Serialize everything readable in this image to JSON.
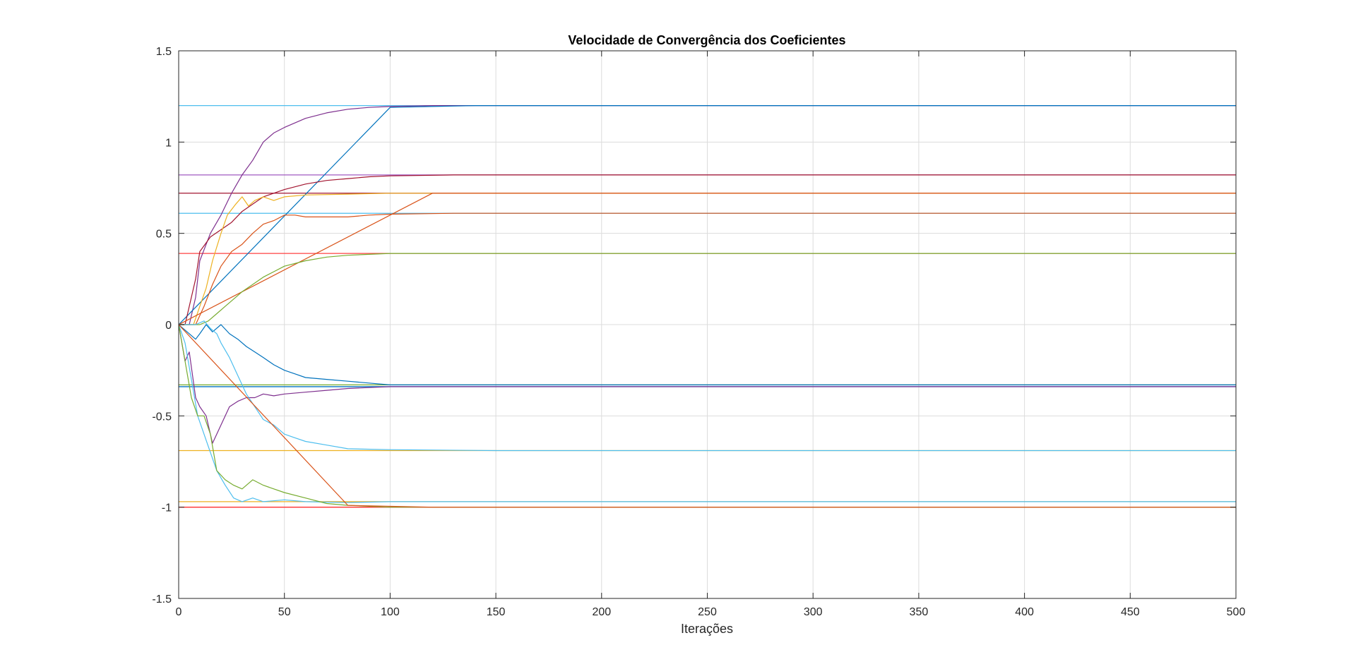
{
  "chart_data": {
    "type": "line",
    "title": "Velocidade de Convergência dos Coeficientes",
    "xlabel": "Iterações",
    "ylabel": "",
    "xlim": [
      0,
      500
    ],
    "ylim": [
      -1.5,
      1.5
    ],
    "xticks": [
      0,
      50,
      100,
      150,
      200,
      250,
      300,
      350,
      400,
      450,
      500
    ],
    "yticks": [
      -1.5,
      -1,
      -0.5,
      0,
      0.5,
      1,
      1.5
    ],
    "xtick_labels": [
      "0",
      "50",
      "100",
      "150",
      "200",
      "250",
      "300",
      "350",
      "400",
      "450",
      "500"
    ],
    "ytick_labels": [
      "-1.5",
      "-1",
      "-0.5",
      "0",
      "0.5",
      "1",
      "1.5"
    ],
    "grid": true,
    "legend": "none",
    "reference_lines": [
      {
        "y": 1.2,
        "color": "#4DBEEE"
      },
      {
        "y": 0.82,
        "color": "#A05AC0"
      },
      {
        "y": 0.72,
        "color": "#A2142F"
      },
      {
        "y": 0.61,
        "color": "#4DBEEE"
      },
      {
        "y": 0.39,
        "color": "#FF4040"
      },
      {
        "y": -0.33,
        "color": "#77AC30"
      },
      {
        "y": -0.34,
        "color": "#0072BD"
      },
      {
        "y": -0.69,
        "color": "#EDB120"
      },
      {
        "y": -0.97,
        "color": "#EDB120"
      },
      {
        "y": -1.0,
        "color": "#FF3030"
      }
    ],
    "series": [
      {
        "color": "#7E2F8E",
        "final": 1.2,
        "points": [
          [
            0,
            0
          ],
          [
            5,
            0
          ],
          [
            8,
            0.15
          ],
          [
            10,
            0.35
          ],
          [
            15,
            0.5
          ],
          [
            20,
            0.6
          ],
          [
            25,
            0.72
          ],
          [
            30,
            0.82
          ],
          [
            35,
            0.9
          ],
          [
            40,
            1.0
          ],
          [
            45,
            1.05
          ],
          [
            50,
            1.08
          ],
          [
            60,
            1.13
          ],
          [
            70,
            1.16
          ],
          [
            80,
            1.18
          ],
          [
            90,
            1.19
          ],
          [
            100,
            1.195
          ],
          [
            120,
            1.2
          ],
          [
            500,
            1.2
          ]
        ]
      },
      {
        "color": "#0072BD",
        "final": 1.2,
        "points": [
          [
            0,
            0
          ],
          [
            100,
            1.19
          ],
          [
            140,
            1.2
          ],
          [
            500,
            1.2
          ]
        ]
      },
      {
        "color": "#A2142F",
        "final": 0.82,
        "points": [
          [
            0,
            0
          ],
          [
            3,
            0
          ],
          [
            5,
            0.1
          ],
          [
            8,
            0.25
          ],
          [
            10,
            0.4
          ],
          [
            15,
            0.48
          ],
          [
            20,
            0.52
          ],
          [
            25,
            0.56
          ],
          [
            30,
            0.62
          ],
          [
            35,
            0.66
          ],
          [
            40,
            0.7
          ],
          [
            50,
            0.74
          ],
          [
            60,
            0.77
          ],
          [
            70,
            0.79
          ],
          [
            80,
            0.8
          ],
          [
            90,
            0.81
          ],
          [
            100,
            0.815
          ],
          [
            130,
            0.82
          ],
          [
            500,
            0.82
          ]
        ]
      },
      {
        "color": "#EDB120",
        "final": 0.72,
        "points": [
          [
            0,
            0
          ],
          [
            7,
            0
          ],
          [
            10,
            0.1
          ],
          [
            13,
            0.2
          ],
          [
            16,
            0.35
          ],
          [
            20,
            0.5
          ],
          [
            23,
            0.6
          ],
          [
            27,
            0.66
          ],
          [
            30,
            0.7
          ],
          [
            33,
            0.65
          ],
          [
            36,
            0.68
          ],
          [
            40,
            0.7
          ],
          [
            45,
            0.68
          ],
          [
            50,
            0.7
          ],
          [
            60,
            0.71
          ],
          [
            80,
            0.715
          ],
          [
            100,
            0.72
          ],
          [
            500,
            0.72
          ]
        ]
      },
      {
        "color": "#D95319",
        "final": 0.72,
        "points": [
          [
            0,
            0
          ],
          [
            120,
            0.72
          ],
          [
            500,
            0.72
          ]
        ]
      },
      {
        "color": "#D95319",
        "final": 0.61,
        "points": [
          [
            0,
            0
          ],
          [
            8,
            0
          ],
          [
            12,
            0.1
          ],
          [
            16,
            0.22
          ],
          [
            20,
            0.32
          ],
          [
            25,
            0.4
          ],
          [
            30,
            0.44
          ],
          [
            35,
            0.5
          ],
          [
            40,
            0.55
          ],
          [
            45,
            0.57
          ],
          [
            50,
            0.6
          ],
          [
            55,
            0.6
          ],
          [
            60,
            0.59
          ],
          [
            70,
            0.59
          ],
          [
            80,
            0.59
          ],
          [
            90,
            0.6
          ],
          [
            100,
            0.605
          ],
          [
            130,
            0.61
          ],
          [
            500,
            0.61
          ]
        ]
      },
      {
        "color": "#77AC30",
        "final": 0.39,
        "points": [
          [
            0,
            0
          ],
          [
            10,
            0
          ],
          [
            14,
            0.02
          ],
          [
            18,
            0.06
          ],
          [
            22,
            0.1
          ],
          [
            26,
            0.14
          ],
          [
            30,
            0.18
          ],
          [
            35,
            0.22
          ],
          [
            40,
            0.26
          ],
          [
            45,
            0.29
          ],
          [
            50,
            0.32
          ],
          [
            60,
            0.35
          ],
          [
            70,
            0.37
          ],
          [
            80,
            0.38
          ],
          [
            90,
            0.385
          ],
          [
            100,
            0.39
          ],
          [
            500,
            0.39
          ]
        ]
      },
      {
        "color": "#0072BD",
        "final": -0.33,
        "points": [
          [
            0,
            0
          ],
          [
            5,
            -0.05
          ],
          [
            8,
            -0.08
          ],
          [
            10,
            -0.05
          ],
          [
            13,
            0
          ],
          [
            16,
            -0.04
          ],
          [
            20,
            0
          ],
          [
            24,
            -0.05
          ],
          [
            28,
            -0.08
          ],
          [
            32,
            -0.12
          ],
          [
            36,
            -0.15
          ],
          [
            40,
            -0.18
          ],
          [
            45,
            -0.22
          ],
          [
            50,
            -0.25
          ],
          [
            55,
            -0.27
          ],
          [
            60,
            -0.29
          ],
          [
            70,
            -0.3
          ],
          [
            80,
            -0.31
          ],
          [
            90,
            -0.32
          ],
          [
            100,
            -0.33
          ],
          [
            500,
            -0.33
          ]
        ]
      },
      {
        "color": "#7E2F8E",
        "final": -0.34,
        "points": [
          [
            0,
            0
          ],
          [
            3,
            -0.2
          ],
          [
            5,
            -0.15
          ],
          [
            8,
            -0.4
          ],
          [
            10,
            -0.45
          ],
          [
            13,
            -0.5
          ],
          [
            16,
            -0.65
          ],
          [
            20,
            -0.55
          ],
          [
            24,
            -0.45
          ],
          [
            28,
            -0.42
          ],
          [
            32,
            -0.4
          ],
          [
            36,
            -0.4
          ],
          [
            40,
            -0.38
          ],
          [
            45,
            -0.39
          ],
          [
            50,
            -0.38
          ],
          [
            60,
            -0.37
          ],
          [
            70,
            -0.36
          ],
          [
            80,
            -0.35
          ],
          [
            90,
            -0.345
          ],
          [
            100,
            -0.34
          ],
          [
            500,
            -0.34
          ]
        ]
      },
      {
        "color": "#4DBEEE",
        "final": -0.69,
        "points": [
          [
            0,
            0
          ],
          [
            8,
            0
          ],
          [
            12,
            0.02
          ],
          [
            15,
            -0.02
          ],
          [
            18,
            -0.05
          ],
          [
            20,
            -0.1
          ],
          [
            24,
            -0.18
          ],
          [
            28,
            -0.28
          ],
          [
            32,
            -0.38
          ],
          [
            36,
            -0.45
          ],
          [
            40,
            -0.52
          ],
          [
            45,
            -0.55
          ],
          [
            50,
            -0.6
          ],
          [
            55,
            -0.62
          ],
          [
            60,
            -0.64
          ],
          [
            70,
            -0.66
          ],
          [
            80,
            -0.68
          ],
          [
            100,
            -0.685
          ],
          [
            150,
            -0.69
          ],
          [
            500,
            -0.69
          ]
        ]
      },
      {
        "color": "#4DBEEE",
        "final": -0.97,
        "points": [
          [
            0,
            0
          ],
          [
            3,
            -0.1
          ],
          [
            6,
            -0.3
          ],
          [
            9,
            -0.5
          ],
          [
            12,
            -0.6
          ],
          [
            15,
            -0.7
          ],
          [
            18,
            -0.8
          ],
          [
            22,
            -0.88
          ],
          [
            26,
            -0.95
          ],
          [
            30,
            -0.97
          ],
          [
            35,
            -0.95
          ],
          [
            40,
            -0.97
          ],
          [
            50,
            -0.96
          ],
          [
            60,
            -0.97
          ],
          [
            80,
            -0.975
          ],
          [
            100,
            -0.97
          ],
          [
            500,
            -0.97
          ]
        ]
      },
      {
        "color": "#77AC30",
        "final": -1.0,
        "points": [
          [
            0,
            0
          ],
          [
            3,
            -0.2
          ],
          [
            6,
            -0.4
          ],
          [
            9,
            -0.5
          ],
          [
            12,
            -0.5
          ],
          [
            15,
            -0.6
          ],
          [
            18,
            -0.8
          ],
          [
            22,
            -0.85
          ],
          [
            26,
            -0.88
          ],
          [
            30,
            -0.9
          ],
          [
            35,
            -0.85
          ],
          [
            40,
            -0.88
          ],
          [
            45,
            -0.9
          ],
          [
            50,
            -0.92
          ],
          [
            60,
            -0.95
          ],
          [
            70,
            -0.98
          ],
          [
            80,
            -0.99
          ],
          [
            100,
            -1.0
          ],
          [
            500,
            -1.0
          ]
        ]
      },
      {
        "color": "#D95319",
        "final": -1.0,
        "points": [
          [
            0,
            0
          ],
          [
            80,
            -0.99
          ],
          [
            120,
            -1.0
          ],
          [
            500,
            -1.0
          ]
        ]
      }
    ]
  }
}
